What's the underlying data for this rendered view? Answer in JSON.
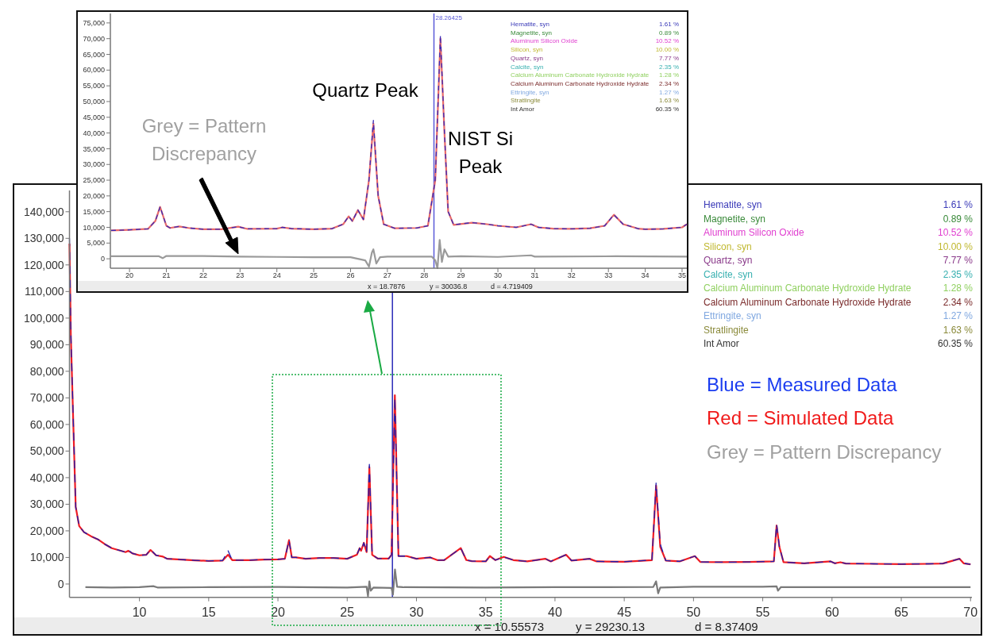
{
  "chart_data": [
    {
      "type": "line",
      "x": [
        4.95,
        5.05,
        5.2,
        5.4,
        5.65,
        6,
        6.5,
        7,
        7.5,
        8,
        9,
        9.2,
        9.5,
        10,
        10.5,
        10.8,
        11.2,
        11.7,
        12,
        13,
        14,
        15,
        16,
        16.4,
        16.7,
        18,
        19,
        20,
        20.5,
        20.8,
        21,
        21.3,
        22,
        23,
        24,
        25,
        25.7,
        25.9,
        26,
        26.2,
        26.4,
        26.6,
        26.8,
        27.2,
        28,
        28.2,
        28.44,
        28.7,
        29.3,
        30,
        31,
        31.5,
        32,
        33.2,
        33.6,
        34,
        35,
        35.3,
        35.7,
        36.3,
        37,
        38,
        39.3,
        39.7,
        40.8,
        41.2,
        42.5,
        43,
        45,
        47,
        47.3,
        47.6,
        48,
        49,
        50.1,
        50.5,
        52,
        54,
        55.8,
        56,
        56.2,
        56.5,
        58,
        59.9,
        60.2,
        60.6,
        61,
        63,
        65,
        67,
        68,
        69.2,
        69.5,
        70
      ],
      "series": [
        {
          "color": "#1f1fb0",
          "line_style": "dashed",
          "values": [
            130000,
            94000,
            66000,
            29000,
            21800,
            19500,
            18000,
            16800,
            15000,
            13500,
            12000,
            12800,
            11500,
            10800,
            11000,
            13000,
            10800,
            10300,
            9500,
            9200,
            8900,
            8700,
            8800,
            12500,
            9000,
            9000,
            9200,
            9300,
            9500,
            16500,
            10000,
            10000,
            9500,
            9800,
            9800,
            9500,
            11000,
            13500,
            12500,
            15500,
            12000,
            45000,
            11000,
            9600,
            9600,
            11000,
            70000,
            10500,
            10500,
            9500,
            10000,
            9000,
            9000,
            13500,
            9000,
            8600,
            8500,
            10500,
            9000,
            10200,
            9000,
            8500,
            9500,
            8500,
            11000,
            8800,
            9500,
            8500,
            8400,
            9000,
            38000,
            15000,
            8800,
            8500,
            10500,
            8300,
            8200,
            8300,
            8500,
            22500,
            14000,
            8200,
            7800,
            8500,
            7800,
            8200,
            7700,
            7600,
            7500,
            7600,
            7700,
            9500,
            7800,
            7400
          ]
        },
        {
          "color": "#ee1c24",
          "values": [
            128000,
            93000,
            65000,
            29000,
            21800,
            19500,
            18000,
            16800,
            15000,
            13500,
            12000,
            12500,
            11500,
            10800,
            11000,
            12800,
            10800,
            10300,
            9500,
            9200,
            8900,
            8700,
            8800,
            11000,
            9000,
            9000,
            9200,
            9300,
            9500,
            16500,
            10000,
            10000,
            9500,
            9800,
            9800,
            9500,
            11000,
            13500,
            12500,
            15500,
            12000,
            44000,
            11000,
            9600,
            9600,
            11000,
            71000,
            10500,
            10500,
            9500,
            10000,
            9000,
            9000,
            13500,
            9000,
            8600,
            8500,
            10500,
            9000,
            10200,
            9000,
            8500,
            9500,
            8500,
            11000,
            8800,
            9500,
            8500,
            8400,
            9000,
            37000,
            14000,
            8800,
            8500,
            10500,
            8300,
            8200,
            8300,
            8500,
            22000,
            14000,
            8200,
            7800,
            8500,
            7800,
            8200,
            7700,
            7600,
            7500,
            7600,
            7700,
            9500,
            7800,
            7400
          ]
        },
        {
          "color": "#7a7a7a",
          "x": [
            6.1,
            8,
            10,
            11,
            11.3,
            15,
            20,
            25,
            26.4,
            26.5,
            26.6,
            26.7,
            26.9,
            28.2,
            28.3,
            28.45,
            28.6,
            29,
            35,
            40,
            47.1,
            47.3,
            47.45,
            47.6,
            50,
            55,
            56,
            56.1,
            56.3,
            60,
            65,
            70
          ],
          "values": [
            -1200,
            -1300,
            -1200,
            -800,
            -1300,
            -1200,
            -1100,
            -1300,
            -1000,
            -4500,
            1000,
            -2500,
            -1300,
            -1500,
            -4000,
            5500,
            -1000,
            -1200,
            -1300,
            -1200,
            -1100,
            1000,
            -3500,
            -1300,
            -1000,
            -1000,
            -900,
            -2500,
            -1200,
            -1200,
            -1200,
            -1200
          ]
        }
      ],
      "xlim": [
        4.95,
        70.1
      ],
      "ylim": [
        -5000,
        148000
      ],
      "xticks": [
        10,
        15,
        20,
        25,
        30,
        35,
        40,
        45,
        50,
        55,
        60,
        65,
        70
      ],
      "yticks": [
        0,
        {
          "value": 10000,
          "label": "10,000"
        },
        {
          "value": 20000,
          "label": "20,000"
        },
        {
          "value": 30000,
          "label": "30,000"
        },
        {
          "value": 40000,
          "label": "40,000"
        },
        {
          "value": 50000,
          "label": "50,000"
        },
        {
          "value": 60000,
          "label": "60,000"
        },
        {
          "value": 70000,
          "label": "70,000"
        },
        {
          "value": 80000,
          "label": "80,000"
        },
        {
          "value": 90000,
          "label": "90,000"
        },
        {
          "value": 100000,
          "label": "100,000"
        },
        {
          "value": 110000,
          "label": "110,000"
        },
        {
          "value": 120000,
          "label": "120,000"
        },
        {
          "value": 130000,
          "label": "130,000"
        },
        {
          "value": 140000,
          "label": "140,000"
        }
      ],
      "ref_lines": [
        {
          "axis": "x",
          "value": 28.26425,
          "color": "#2a2ab8"
        }
      ],
      "grid": false,
      "annotations": [
        "Hematite, syn",
        "1.61 %",
        "Magnetite, syn",
        "0.89 %",
        "Aluminum Silicon Oxide",
        "10.52 %",
        "Silicon, syn",
        "10.00 %",
        "Quartz, syn",
        "7.77 %",
        "Calcite, syn",
        "2.35 %",
        "Calcium Aluminum Carbonate Hydroxide Hydrate",
        "1.28 %",
        "Calcium Aluminum Carbonate Hydroxide Hydrate",
        "2.34 %",
        "Ettringite, syn",
        "1.27 %",
        "Stratlingite",
        "1.63 %",
        "Int Amor",
        "60.35 %",
        "Blue = Measured Data",
        "Red = Simulated Data",
        "Grey = Pattern Discrepancy",
        "x = 10.55573",
        "y = 29230.13",
        "d = 8.37409"
      ]
    },
    {
      "type": "line",
      "x": [
        19.5,
        20,
        20.5,
        20.7,
        20.83,
        21,
        21.1,
        21.35,
        21.6,
        22,
        22.5,
        22.95,
        23.2,
        24,
        24.15,
        24.4,
        25,
        25.5,
        25.8,
        25.95,
        26.05,
        26.2,
        26.35,
        26.5,
        26.62,
        26.75,
        26.9,
        27.2,
        27.8,
        28.1,
        28.3,
        28.44,
        28.55,
        28.65,
        28.8,
        29.3,
        29.7,
        30,
        30.5,
        30.9,
        31.1,
        31.5,
        32,
        32.5,
        32.9,
        33.15,
        33.4,
        33.8,
        34,
        34.5,
        35,
        35.13
      ],
      "series": [
        {
          "color": "#3a2ab8",
          "line_style": "dashed",
          "values": [
            9000,
            9200,
            9500,
            12000,
            16500,
            10500,
            9800,
            10300,
            9800,
            9400,
            9400,
            10200,
            9500,
            9600,
            10000,
            9600,
            9400,
            9600,
            11000,
            13500,
            12000,
            15500,
            12500,
            25000,
            44000,
            20000,
            11000,
            9700,
            9800,
            10500,
            25000,
            71000,
            40000,
            15000,
            10800,
            11500,
            11000,
            10500,
            10000,
            11000,
            10000,
            9600,
            9500,
            9700,
            10500,
            14000,
            11000,
            9600,
            9400,
            9500,
            10000,
            11000
          ]
        },
        {
          "color": "#e86a6a",
          "values": [
            9000,
            9200,
            9500,
            12000,
            16500,
            10500,
            9800,
            10300,
            9800,
            9400,
            9400,
            10200,
            9500,
            9600,
            10000,
            9600,
            9400,
            9600,
            11000,
            13500,
            12000,
            15500,
            12500,
            25000,
            43000,
            20000,
            11000,
            9700,
            9800,
            10500,
            25000,
            70000,
            40000,
            15000,
            10800,
            11500,
            11000,
            10500,
            10000,
            11000,
            10000,
            9600,
            9500,
            9700,
            10500,
            14000,
            11000,
            9600,
            9400,
            9500,
            10000,
            11000
          ]
        },
        {
          "color": "#9a9a9a",
          "x": [
            19.5,
            20.8,
            20.9,
            21,
            22,
            23,
            24,
            25,
            26,
            26.4,
            26.5,
            26.58,
            26.62,
            26.7,
            26.8,
            27,
            28.2,
            28.3,
            28.36,
            28.42,
            28.48,
            28.55,
            28.65,
            29,
            30,
            30.9,
            31,
            33.2,
            35.13
          ],
          "values": [
            800,
            800,
            200,
            900,
            900,
            700,
            600,
            500,
            500,
            -500,
            -2500,
            2000,
            3000,
            -1500,
            500,
            700,
            700,
            -500,
            -3000,
            6000,
            -1000,
            3000,
            700,
            800,
            600,
            1100,
            700,
            800,
            700
          ]
        }
      ],
      "xlim": [
        19.48,
        35.13
      ],
      "ylim": [
        -3000,
        78000
      ],
      "xticks": [
        20,
        21,
        22,
        23,
        24,
        25,
        26,
        27,
        28,
        29,
        30,
        31,
        32,
        33,
        34,
        35
      ],
      "yticks": [
        0,
        {
          "value": 5000,
          "label": "5,000"
        },
        {
          "value": 10000,
          "label": "10,000"
        },
        {
          "value": 15000,
          "label": "15,000"
        },
        {
          "value": 20000,
          "label": "20,000"
        },
        {
          "value": 25000,
          "label": "25,000"
        },
        {
          "value": 30000,
          "label": "30,000"
        },
        {
          "value": 35000,
          "label": "35,000"
        },
        {
          "value": 40000,
          "label": "40,000"
        },
        {
          "value": 45000,
          "label": "45,000"
        },
        {
          "value": 50000,
          "label": "50,000"
        },
        {
          "value": 55000,
          "label": "55,000"
        },
        {
          "value": 60000,
          "label": "60,000"
        },
        {
          "value": 65000,
          "label": "65,000"
        },
        {
          "value": 70000,
          "label": "70,000"
        },
        {
          "value": 75000,
          "label": "75,000"
        }
      ],
      "ref_lines": [
        {
          "axis": "x",
          "value": 28.26425,
          "label": "28.26425",
          "color": "#5a5ad8"
        }
      ],
      "grid": false,
      "annotations": [
        "Hematite, syn",
        "1.61 %",
        "Magnetite, syn",
        "0.89 %",
        "Aluminum Silicon Oxide",
        "10.52 %",
        "Silicon, syn",
        "10.00 %",
        "Quartz, syn",
        "7.77 %",
        "Calcite, syn",
        "2.35 %",
        "Calcium Aluminum Carbonate Hydroxide Hydrate",
        "1.28 %",
        "Calcium Aluminum Carbonate Hydroxide Hydrate",
        "2.34 %",
        "Ettringite, syn",
        "1.27 %",
        "Stratlingite",
        "1.63 %",
        "Int Amor",
        "60.35 %",
        "Quartz Peak",
        "NIST Si Peak",
        "Grey = Pattern Discrepancy",
        "x = 18.7876",
        "y = 30036.8",
        "d = 4.719409"
      ]
    }
  ]
}
